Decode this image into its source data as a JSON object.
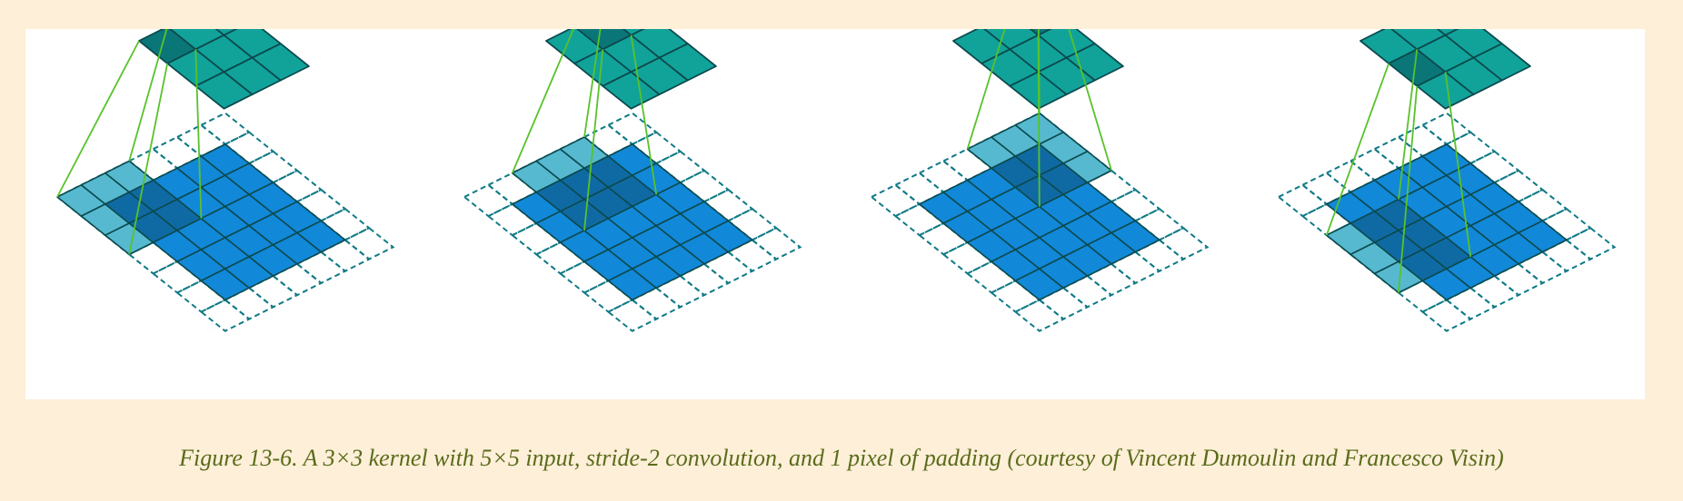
{
  "caption": "Figure 13-6. A 3×3 kernel with 5×5 input, stride-2 convolution, and 1 pixel of padding (courtesy of Vincent Dumoulin and Francesco Visin)",
  "colors": {
    "background": "#fdefd8",
    "panel": "#ffffff",
    "input_cell": "#1288d8",
    "kernel_window_cell": "#56b9cf",
    "overlap_cell": "#0f6aa3",
    "output_cell": "#11a39a",
    "output_active_cell": "#0b7678",
    "grid_line": "#0b4a4e",
    "padding_dash": "#0f7a86",
    "link_line": "#58c22a"
  },
  "diagram": {
    "input_size": 5,
    "padding": 1,
    "padded_size": 7,
    "kernel_size": 3,
    "stride": 2,
    "output_size": 3,
    "steps": [
      {
        "kernel_row": 0,
        "kernel_col": 0,
        "output_row": 0,
        "output_col": 0
      },
      {
        "kernel_row": 0,
        "kernel_col": 2,
        "output_row": 0,
        "output_col": 1
      },
      {
        "kernel_row": 0,
        "kernel_col": 4,
        "output_row": 0,
        "output_col": 2
      },
      {
        "kernel_row": 2,
        "kernel_col": 0,
        "output_row": 1,
        "output_col": 0
      }
    ]
  }
}
